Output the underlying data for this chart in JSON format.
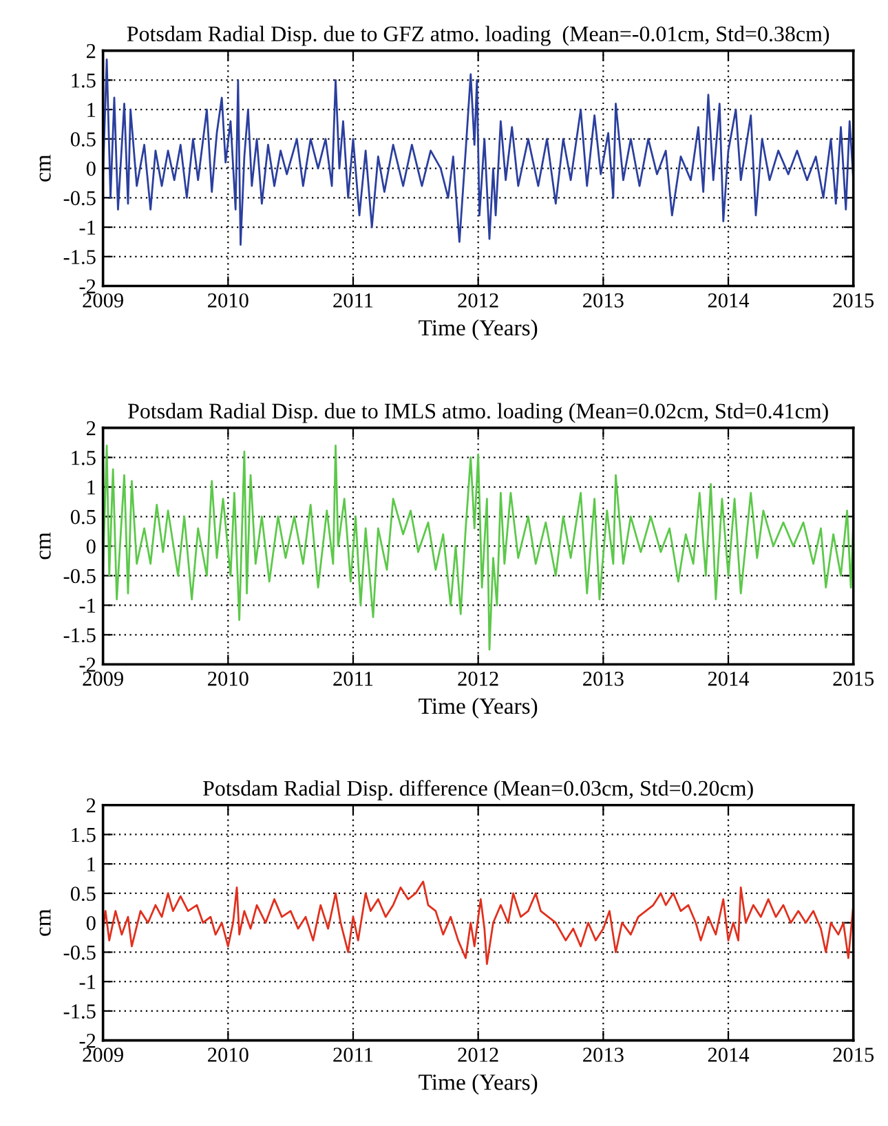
{
  "chart_data": [
    {
      "type": "line",
      "title": "Potsdam Radial Disp. due to GFZ atmo. loading  (Mean=-0.01cm, Std=0.38cm)",
      "xlabel": "Time (Years)",
      "ylabel": "cm",
      "xlim": [
        2009,
        2015
      ],
      "xticks": [
        2009,
        2010,
        2011,
        2012,
        2013,
        2014,
        2015
      ],
      "ylim": [
        -2,
        2
      ],
      "yticks": [
        -2,
        -1.5,
        -1,
        -0.5,
        0,
        0.5,
        1,
        1.5,
        2
      ],
      "grid": true,
      "line_style": "solid",
      "marker": "none",
      "x": [
        2009.0,
        2009.03,
        2009.06,
        2009.09,
        2009.12,
        2009.17,
        2009.2,
        2009.22,
        2009.27,
        2009.33,
        2009.38,
        2009.42,
        2009.47,
        2009.52,
        2009.57,
        2009.62,
        2009.67,
        2009.72,
        2009.76,
        2009.83,
        2009.87,
        2009.91,
        2009.95,
        2009.98,
        2010.02,
        2010.06,
        2010.08,
        2010.1,
        2010.13,
        2010.16,
        2010.19,
        2010.23,
        2010.27,
        2010.32,
        2010.37,
        2010.42,
        2010.47,
        2010.55,
        2010.6,
        2010.66,
        2010.72,
        2010.78,
        2010.83,
        2010.86,
        2010.89,
        2010.92,
        2010.96,
        2011.0,
        2011.05,
        2011.1,
        2011.15,
        2011.2,
        2011.25,
        2011.32,
        2011.4,
        2011.47,
        2011.55,
        2011.62,
        2011.7,
        2011.76,
        2011.8,
        2011.85,
        2011.9,
        2011.94,
        2011.97,
        2011.99,
        2012.01,
        2012.05,
        2012.09,
        2012.12,
        2012.14,
        2012.18,
        2012.22,
        2012.27,
        2012.32,
        2012.4,
        2012.48,
        2012.55,
        2012.62,
        2012.68,
        2012.74,
        2012.82,
        2012.87,
        2012.93,
        2012.98,
        2013.04,
        2013.08,
        2013.1,
        2013.16,
        2013.22,
        2013.29,
        2013.36,
        2013.43,
        2013.5,
        2013.55,
        2013.62,
        2013.7,
        2013.76,
        2013.8,
        2013.84,
        2013.88,
        2013.93,
        2013.96,
        2014.0,
        2014.06,
        2014.1,
        2014.18,
        2014.22,
        2014.27,
        2014.33,
        2014.4,
        2014.48,
        2014.55,
        2014.63,
        2014.7,
        2014.76,
        2014.82,
        2014.86,
        2014.9,
        2014.94,
        2014.97,
        2015.0
      ],
      "series": [
        {
          "color": "#2b3f9e",
          "values": [
            -0.1,
            1.85,
            -0.5,
            1.2,
            -0.7,
            1.1,
            -0.6,
            1.0,
            -0.3,
            0.4,
            -0.7,
            0.3,
            -0.3,
            0.3,
            -0.2,
            0.4,
            -0.5,
            0.5,
            -0.2,
            1.0,
            -0.4,
            0.6,
            1.2,
            0.1,
            0.8,
            -0.7,
            1.5,
            -1.3,
            0.2,
            1.0,
            -0.3,
            0.5,
            -0.6,
            0.4,
            -0.3,
            0.3,
            -0.1,
            0.5,
            -0.3,
            0.5,
            0.0,
            0.5,
            -0.3,
            1.5,
            0.0,
            0.8,
            -0.5,
            0.5,
            -0.8,
            0.3,
            -1.0,
            0.2,
            -0.4,
            0.4,
            -0.3,
            0.4,
            -0.3,
            0.3,
            0.0,
            -0.5,
            0.2,
            -1.25,
            0.3,
            1.6,
            0.4,
            1.5,
            -0.8,
            0.5,
            -1.2,
            0.0,
            -0.8,
            0.8,
            -0.2,
            0.7,
            -0.3,
            0.5,
            -0.3,
            0.5,
            -0.6,
            0.5,
            -0.2,
            1.0,
            -0.3,
            0.9,
            -0.1,
            0.6,
            -0.5,
            1.1,
            -0.2,
            0.5,
            -0.3,
            0.5,
            -0.1,
            0.3,
            -0.8,
            0.2,
            -0.2,
            0.7,
            -0.4,
            1.25,
            -0.2,
            1.1,
            -0.9,
            0.3,
            1.0,
            -0.2,
            0.9,
            -0.8,
            0.5,
            -0.2,
            0.3,
            -0.1,
            0.3,
            -0.2,
            0.2,
            -0.5,
            0.5,
            -0.6,
            0.7,
            -0.7,
            0.8,
            -0.2
          ]
        }
      ]
    },
    {
      "type": "line",
      "title": "Potsdam Radial Disp. due to IMLS atmo. loading (Mean=0.02cm, Std=0.41cm)",
      "xlabel": "Time (Years)",
      "ylabel": "cm",
      "xlim": [
        2009,
        2015
      ],
      "xticks": [
        2009,
        2010,
        2011,
        2012,
        2013,
        2014,
        2015
      ],
      "ylim": [
        -2,
        2
      ],
      "yticks": [
        -2,
        -1.5,
        -1,
        -0.5,
        0,
        0.5,
        1,
        1.5,
        2
      ],
      "grid": true,
      "line_style": "solid",
      "marker": "none",
      "x": [
        2009.0,
        2009.03,
        2009.05,
        2009.08,
        2009.11,
        2009.17,
        2009.2,
        2009.23,
        2009.27,
        2009.33,
        2009.38,
        2009.43,
        2009.48,
        2009.52,
        2009.6,
        2009.65,
        2009.71,
        2009.76,
        2009.83,
        2009.87,
        2009.91,
        2009.96,
        2010.02,
        2010.05,
        2010.09,
        2010.13,
        2010.15,
        2010.18,
        2010.22,
        2010.27,
        2010.33,
        2010.4,
        2010.46,
        2010.53,
        2010.6,
        2010.66,
        2010.72,
        2010.79,
        2010.84,
        2010.86,
        2010.88,
        2010.93,
        2010.98,
        2011.02,
        2011.06,
        2011.1,
        2011.16,
        2011.2,
        2011.27,
        2011.32,
        2011.4,
        2011.46,
        2011.52,
        2011.6,
        2011.66,
        2011.72,
        2011.78,
        2011.82,
        2011.86,
        2011.9,
        2011.94,
        2011.97,
        2012.0,
        2012.03,
        2012.07,
        2012.09,
        2012.12,
        2012.15,
        2012.18,
        2012.21,
        2012.26,
        2012.32,
        2012.4,
        2012.46,
        2012.54,
        2012.62,
        2012.68,
        2012.74,
        2012.82,
        2012.87,
        2012.93,
        2012.97,
        2013.03,
        2013.08,
        2013.1,
        2013.16,
        2013.22,
        2013.3,
        2013.38,
        2013.46,
        2013.53,
        2013.6,
        2013.66,
        2013.72,
        2013.77,
        2013.82,
        2013.86,
        2013.9,
        2013.95,
        2014.0,
        2014.05,
        2014.1,
        2014.18,
        2014.23,
        2014.28,
        2014.36,
        2014.44,
        2014.52,
        2014.6,
        2014.68,
        2014.74,
        2014.78,
        2014.84,
        2014.9,
        2014.95,
        2014.98,
        2015.0
      ],
      "series": [
        {
          "color": "#5cc84a",
          "values": [
            -0.4,
            1.7,
            -0.5,
            1.3,
            -0.9,
            1.2,
            -0.8,
            1.1,
            -0.3,
            0.3,
            -0.3,
            0.7,
            -0.1,
            0.6,
            -0.5,
            0.5,
            -0.9,
            0.3,
            -0.5,
            1.1,
            -0.2,
            0.8,
            -0.5,
            0.9,
            -1.25,
            1.6,
            -0.8,
            1.2,
            -0.3,
            0.5,
            -0.6,
            0.5,
            -0.2,
            0.5,
            -0.3,
            0.7,
            -0.7,
            0.6,
            -0.3,
            1.7,
            0.0,
            0.8,
            -0.6,
            0.5,
            -1.0,
            0.3,
            -1.2,
            0.3,
            -0.4,
            0.8,
            0.2,
            0.6,
            -0.1,
            0.4,
            -0.4,
            0.2,
            -1.0,
            0.0,
            -1.15,
            0.3,
            1.5,
            0.3,
            1.55,
            -0.7,
            0.8,
            -1.75,
            -0.2,
            -1.0,
            0.9,
            -0.3,
            0.9,
            -0.2,
            0.5,
            -0.3,
            0.4,
            -0.5,
            0.5,
            -0.2,
            0.9,
            -0.8,
            0.8,
            -0.9,
            0.6,
            -0.3,
            1.2,
            -0.3,
            0.5,
            -0.1,
            0.5,
            -0.1,
            0.3,
            -0.6,
            0.2,
            -0.3,
            0.9,
            -0.5,
            1.05,
            -0.9,
            0.8,
            -0.5,
            0.8,
            -0.8,
            0.9,
            -0.2,
            0.6,
            0.0,
            0.4,
            0.0,
            0.4,
            -0.3,
            0.3,
            -0.7,
            0.2,
            -0.5,
            0.6,
            -0.7,
            0.4
          ]
        }
      ]
    },
    {
      "type": "line",
      "title": "Potsdam Radial Disp. difference (Mean=0.03cm, Std=0.20cm)",
      "xlabel": "Time (Years)",
      "ylabel": "cm",
      "xlim": [
        2009,
        2015
      ],
      "xticks": [
        2009,
        2010,
        2011,
        2012,
        2013,
        2014,
        2015
      ],
      "ylim": [
        -2,
        2
      ],
      "yticks": [
        -2,
        -1.5,
        -1,
        -0.5,
        0,
        0.5,
        1,
        1.5,
        2
      ],
      "grid": true,
      "line_style": "solid",
      "marker": "none",
      "x": [
        2009.0,
        2009.02,
        2009.05,
        2009.1,
        2009.15,
        2009.2,
        2009.23,
        2009.3,
        2009.36,
        2009.42,
        2009.47,
        2009.52,
        2009.56,
        2009.62,
        2009.68,
        2009.75,
        2009.8,
        2009.86,
        2009.9,
        2009.95,
        2010.0,
        2010.04,
        2010.07,
        2010.09,
        2010.13,
        2010.18,
        2010.23,
        2010.3,
        2010.37,
        2010.43,
        2010.5,
        2010.56,
        2010.62,
        2010.68,
        2010.74,
        2010.8,
        2010.86,
        2010.9,
        2010.96,
        2011.0,
        2011.04,
        2011.1,
        2011.14,
        2011.2,
        2011.26,
        2011.32,
        2011.38,
        2011.44,
        2011.5,
        2011.56,
        2011.6,
        2011.66,
        2011.72,
        2011.78,
        2011.84,
        2011.9,
        2011.94,
        2011.97,
        2012.02,
        2012.05,
        2012.07,
        2012.12,
        2012.18,
        2012.24,
        2012.28,
        2012.34,
        2012.4,
        2012.46,
        2012.5,
        2012.56,
        2012.62,
        2012.7,
        2012.76,
        2012.82,
        2012.88,
        2012.94,
        2013.0,
        2013.05,
        2013.1,
        2013.15,
        2013.22,
        2013.28,
        2013.34,
        2013.4,
        2013.46,
        2013.5,
        2013.56,
        2013.62,
        2013.68,
        2013.74,
        2013.78,
        2013.84,
        2013.9,
        2013.96,
        2014.0,
        2014.04,
        2014.08,
        2014.1,
        2014.14,
        2014.2,
        2014.26,
        2014.32,
        2014.38,
        2014.44,
        2014.5,
        2014.56,
        2014.62,
        2014.68,
        2014.74,
        2014.78,
        2014.82,
        2014.88,
        2014.92,
        2014.96,
        2015.0
      ],
      "series": [
        {
          "color": "#e0301e",
          "values": [
            -0.1,
            0.2,
            -0.3,
            0.2,
            -0.2,
            0.1,
            -0.4,
            0.2,
            0.0,
            0.3,
            0.1,
            0.5,
            0.2,
            0.45,
            0.2,
            0.3,
            0.0,
            0.1,
            -0.2,
            0.0,
            -0.4,
            0.0,
            0.6,
            -0.2,
            0.2,
            -0.1,
            0.3,
            0.0,
            0.4,
            0.1,
            0.2,
            -0.1,
            0.1,
            -0.3,
            0.3,
            -0.1,
            0.5,
            0.0,
            -0.5,
            0.1,
            -0.3,
            0.5,
            0.2,
            0.4,
            0.1,
            0.3,
            0.6,
            0.4,
            0.5,
            0.7,
            0.3,
            0.2,
            -0.2,
            0.1,
            -0.3,
            -0.6,
            0.0,
            -0.4,
            0.4,
            -0.1,
            -0.7,
            0.0,
            0.3,
            0.0,
            0.5,
            0.1,
            0.2,
            0.5,
            0.2,
            0.1,
            0.0,
            -0.3,
            -0.1,
            -0.4,
            0.0,
            -0.3,
            -0.1,
            0.2,
            -0.5,
            0.0,
            -0.2,
            0.1,
            0.2,
            0.3,
            0.5,
            0.3,
            0.5,
            0.2,
            0.3,
            0.0,
            -0.3,
            0.1,
            -0.2,
            0.4,
            -0.3,
            0.0,
            -0.3,
            0.6,
            0.0,
            0.3,
            0.1,
            0.4,
            0.1,
            0.3,
            0.0,
            0.2,
            0.0,
            0.2,
            -0.1,
            -0.5,
            0.0,
            -0.2,
            0.0,
            -0.6,
            0.3
          ]
        }
      ]
    }
  ]
}
